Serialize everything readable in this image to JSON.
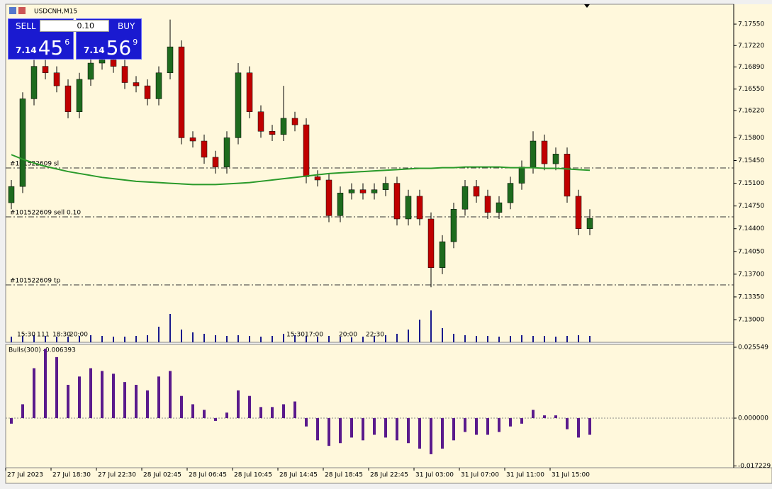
{
  "header": {
    "title": "USDCNH,M15"
  },
  "trade_panel": {
    "sell_label": "SELL",
    "buy_label": "BUY",
    "lot": "0.10",
    "sell_price": {
      "big": "7.14",
      "main": "45",
      "small": "6"
    },
    "buy_price": {
      "big": "7.14",
      "main": "56",
      "small": "9"
    }
  },
  "chart": {
    "ylim": [
      7.12651,
      7.17856
    ],
    "yticks": [
      {
        "value": 7.1755,
        "label": "7.17550"
      },
      {
        "value": 7.1722,
        "label": "7.17220"
      },
      {
        "value": 7.1689,
        "label": "7.16890"
      },
      {
        "value": 7.1655,
        "label": "7.16550"
      },
      {
        "value": 7.1622,
        "label": "7.16220"
      },
      {
        "value": 7.158,
        "label": "7.15800"
      },
      {
        "value": 7.1545,
        "label": "7.15450"
      },
      {
        "value": 7.151,
        "label": "7.15100"
      },
      {
        "value": 7.1475,
        "label": "7.14750"
      },
      {
        "value": 7.144,
        "label": "7.14400"
      },
      {
        "value": 7.1405,
        "label": "7.14050"
      },
      {
        "value": 7.137,
        "label": "7.13700"
      },
      {
        "value": 7.1335,
        "label": "7.13350"
      },
      {
        "value": 7.13,
        "label": "7.13000"
      }
    ],
    "bull_color": "#1e6b1e",
    "bear_color": "#c00000",
    "ma_color": "#2a9a2a",
    "open": [
      7.148,
      7.1505,
      7.164,
      7.169,
      7.168,
      7.166,
      7.162,
      7.167,
      7.1695,
      7.17,
      7.169,
      7.1665,
      7.166,
      7.164,
      7.168,
      7.172,
      7.158,
      7.1575,
      7.155,
      7.1535,
      7.158,
      7.168,
      7.162,
      7.159,
      7.1585,
      7.161,
      7.16,
      7.152,
      7.1515,
      7.146,
      7.1495,
      7.15,
      7.1495,
      7.15,
      7.151,
      7.1455,
      7.149,
      7.1455,
      7.138,
      7.142,
      7.147,
      7.1505,
      7.149,
      7.1465,
      7.148,
      7.151,
      7.1535,
      7.1575,
      7.154,
      7.1555,
      7.149,
      7.144
    ],
    "high": [
      7.1515,
      7.165,
      7.17,
      7.17,
      7.169,
      7.167,
      7.168,
      7.1705,
      7.171,
      7.171,
      7.17,
      7.1675,
      7.167,
      7.169,
      7.1762,
      7.173,
      7.159,
      7.1585,
      7.156,
      7.159,
      7.1695,
      7.169,
      7.163,
      7.16,
      7.166,
      7.162,
      7.161,
      7.153,
      7.1525,
      7.1505,
      7.151,
      7.151,
      7.151,
      7.152,
      7.152,
      7.15,
      7.15,
      7.1465,
      7.143,
      7.148,
      7.1515,
      7.1515,
      7.15,
      7.149,
      7.152,
      7.1545,
      7.159,
      7.1585,
      7.1565,
      7.1565,
      7.15,
      7.147
    ],
    "low": [
      7.147,
      7.1495,
      7.163,
      7.167,
      7.165,
      7.161,
      7.161,
      7.166,
      7.1685,
      7.168,
      7.1655,
      7.165,
      7.163,
      7.163,
      7.167,
      7.157,
      7.1565,
      7.154,
      7.1525,
      7.1525,
      7.157,
      7.161,
      7.158,
      7.1575,
      7.1575,
      7.159,
      7.151,
      7.1505,
      7.145,
      7.145,
      7.1485,
      7.1485,
      7.1485,
      7.149,
      7.1445,
      7.1445,
      7.1445,
      7.135,
      7.137,
      7.141,
      7.146,
      7.148,
      7.1455,
      7.1455,
      7.147,
      7.15,
      7.1525,
      7.153,
      7.153,
      7.148,
      7.143,
      7.143
    ],
    "close": [
      7.1505,
      7.164,
      7.169,
      7.168,
      7.166,
      7.162,
      7.167,
      7.1695,
      7.17,
      7.169,
      7.1665,
      7.166,
      7.164,
      7.168,
      7.172,
      7.158,
      7.1575,
      7.155,
      7.1535,
      7.158,
      7.168,
      7.162,
      7.159,
      7.1585,
      7.161,
      7.16,
      7.152,
      7.1515,
      7.146,
      7.1495,
      7.15,
      7.1495,
      7.15,
      7.151,
      7.1455,
      7.149,
      7.1455,
      7.138,
      7.142,
      7.147,
      7.1505,
      7.149,
      7.1465,
      7.148,
      7.151,
      7.1535,
      7.1575,
      7.154,
      7.1555,
      7.149,
      7.144,
      7.1456
    ],
    "ma_values": [
      7.1554,
      7.1547,
      7.1541,
      7.1536,
      7.1532,
      7.1528,
      7.1525,
      7.1522,
      7.1519,
      7.1517,
      7.1515,
      7.1513,
      7.1512,
      7.1511,
      7.151,
      7.1509,
      7.1508,
      7.1508,
      7.1508,
      7.1509,
      7.151,
      7.1511,
      7.1513,
      7.1515,
      7.1517,
      7.1519,
      7.1521,
      7.1523,
      7.1525,
      7.1526,
      7.1527,
      7.1528,
      7.1529,
      7.153,
      7.1531,
      7.1532,
      7.1533,
      7.1533,
      7.1534,
      7.1534,
      7.1535,
      7.1535,
      7.1535,
      7.1535,
      7.1534,
      7.1534,
      7.1534,
      7.1533,
      7.1533,
      7.1532,
      7.1531,
      7.153
    ],
    "volume": [
      8,
      9,
      10,
      9,
      8,
      8,
      9,
      10,
      9,
      8,
      8,
      9,
      10,
      22,
      40,
      18,
      14,
      12,
      10,
      9,
      10,
      9,
      8,
      9,
      12,
      10,
      9,
      8,
      9,
      8,
      7,
      8,
      9,
      10,
      12,
      18,
      32,
      45,
      20,
      12,
      10,
      9,
      9,
      8,
      9,
      10,
      9,
      9,
      8,
      9,
      10,
      9
    ],
    "volume_color": "#1a1a8c",
    "volume_markers": [
      "15:30",
      "1",
      "1",
      "1",
      "18:30",
      "20:00",
      "15:30",
      "17:00",
      "20:00",
      "22:30"
    ],
    "order_lines": [
      {
        "label": "#101522609 sl",
        "price": 7.15335
      },
      {
        "label": "#101522609 sell 0.10",
        "price": 7.14582
      },
      {
        "label": "#101522609 tp",
        "price": 7.13535
      }
    ]
  },
  "indicator": {
    "label": "Bulls(300) -0.006393",
    "color": "#5a1a8c",
    "ylim": [
      -0.01788,
      0.02657
    ],
    "yticks": [
      0.025549,
      {
        "value": 0,
        "label": "0.000000"
      },
      -0.017229
    ],
    "values": [
      -0.002,
      0.005,
      0.018,
      0.025,
      0.022,
      0.012,
      0.015,
      0.018,
      0.017,
      0.016,
      0.013,
      0.012,
      0.01,
      0.015,
      0.017,
      0.008,
      0.005,
      0.003,
      -0.001,
      0.002,
      0.01,
      0.008,
      0.004,
      0.004,
      0.005,
      0.006,
      -0.003,
      -0.008,
      -0.01,
      -0.009,
      -0.007,
      -0.008,
      -0.006,
      -0.007,
      -0.008,
      -0.009,
      -0.011,
      -0.013,
      -0.011,
      -0.008,
      -0.005,
      -0.006,
      -0.006,
      -0.005,
      -0.003,
      -0.002,
      0.003,
      0.001,
      0.001,
      -0.004,
      -0.007,
      -0.006
    ]
  },
  "time_axis": {
    "labels": [
      "27 Jul 2023",
      "27 Jul 18:30",
      "27 Jul 22:30",
      "28 Jul 02:45",
      "28 Jul 06:45",
      "28 Jul 10:45",
      "28 Jul 14:45",
      "28 Jul 18:45",
      "28 Jul 22:45",
      "31 Jul 03:00",
      "31 Jul 07:00",
      "31 Jul 11:00",
      "31 Jul 15:00"
    ]
  }
}
